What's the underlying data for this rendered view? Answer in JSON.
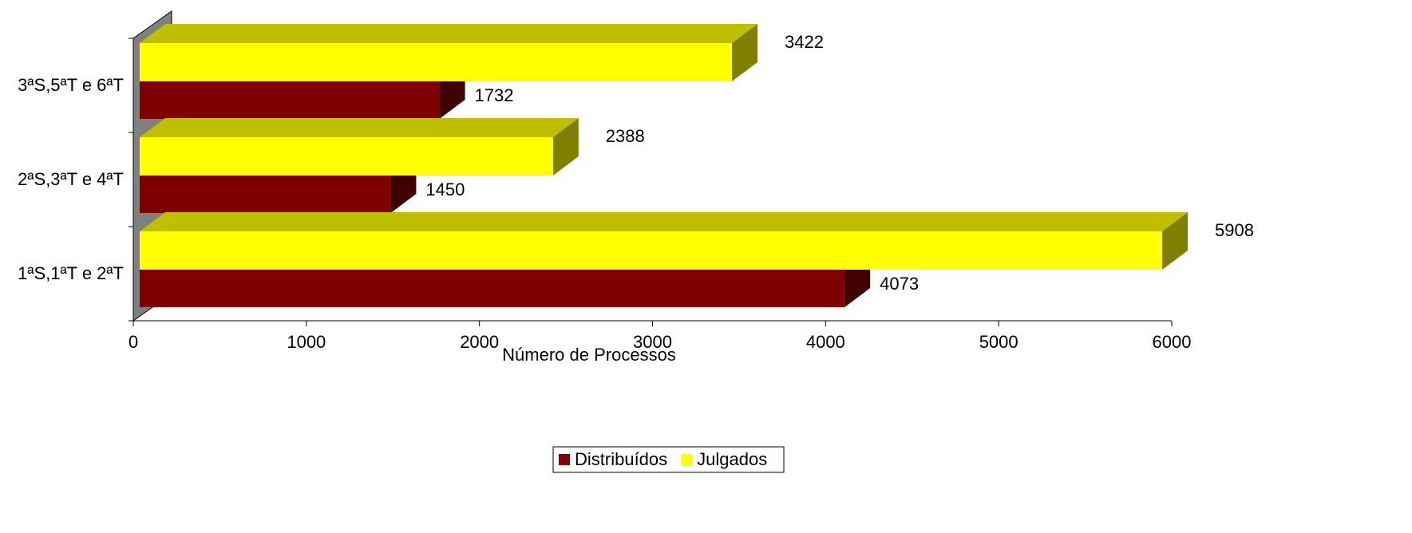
{
  "chart_data": {
    "type": "bar3d-horizontal",
    "xlabel": "Número de Processos",
    "categories": [
      "1ªS,1ªT e 2ªT",
      "2ªS,3ªT e 4ªT",
      "3ªS,5ªT e 6ªT"
    ],
    "series": [
      {
        "name": "Distribuídos",
        "color": "#800000",
        "values": [
          4073,
          1450,
          1732
        ]
      },
      {
        "name": "Julgados",
        "color": "#ffff00",
        "values": [
          5908,
          2388,
          3422
        ]
      }
    ],
    "xlim": [
      0,
      6000
    ],
    "xticks": [
      0,
      1000,
      2000,
      3000,
      4000,
      5000,
      6000
    ],
    "legend": "bottom"
  }
}
